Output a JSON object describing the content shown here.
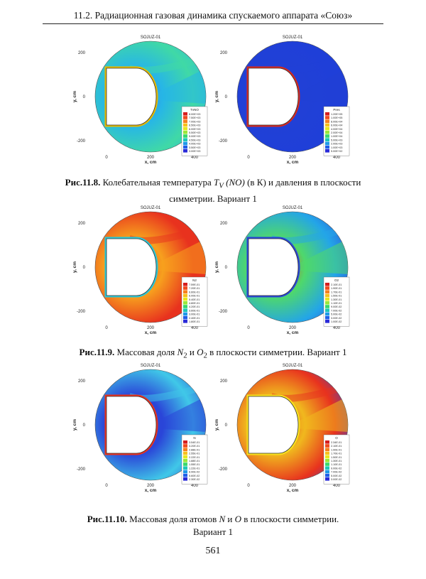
{
  "header": {
    "running_title": "11.2. Радиационная газовая динамика спускаемого аппарата «Союз»"
  },
  "page_number": "561",
  "panel_common": {
    "plot_title": "SOJUZ-01",
    "xlabel": "x, cm",
    "ylabel": "y, cm",
    "xticks": [
      "0",
      "200",
      "400"
    ],
    "yticks": [
      "200",
      "0",
      "-200"
    ]
  },
  "figures": [
    {
      "id": "fig-11-8",
      "caption_label": "Рис.11.8.",
      "caption_line1_pre": " Колебательная температура ",
      "math_symbol": "T",
      "math_sub": "V",
      "math_arg": " (NO)",
      "caption_line1_post": "  (в К) и давления в плоскости",
      "caption_line2": "симметрии. Вариант 1",
      "panels": [
        {
          "legend_title": "TvNO",
          "legend_values": [
            "8.00E+03",
            "7.50E+03",
            "7.00E+03",
            "6.50E+03",
            "6.00E+03",
            "5.50E+03",
            "5.00E+03",
            "4.50E+03",
            "4.00E+03",
            "3.50E+03",
            "3.00E+03"
          ],
          "field_colors": [
            "#3a6ee8",
            "#27b6e6",
            "#40d9a6",
            "#27b6e6"
          ],
          "body_fringe": "#e6b800"
        },
        {
          "legend_title": "Pres",
          "legend_values": [
            "1.20E+05",
            "1.00E+05",
            "8.00E+04",
            "6.00E+04",
            "4.00E+04",
            "2.00E+04",
            "1.00E+04",
            "5.00E+03",
            "2.00E+03",
            "1.00E+03",
            "5.00E+02"
          ],
          "field_colors": [
            "#1f3fd8",
            "#2140d6",
            "#1f3fd8",
            "#1f3fd8"
          ],
          "body_fringe": "#d62a1e"
        }
      ]
    },
    {
      "id": "fig-11-9",
      "caption_label": "Рис.11.9.",
      "caption_pre": " Массовая доля ",
      "sym1": "N",
      "sym1_sub": "2",
      "caption_mid": "  и ",
      "sym2": "O",
      "sym2_sub": "2",
      "caption_post": " в плоскости симметрии. Вариант 1",
      "panels": [
        {
          "legend_title": "N2",
          "legend_values": [
            "7.59E-01",
            "7.20E-01",
            "6.60E-01",
            "6.00E-01",
            "5.40E-01",
            "4.80E-01",
            "4.20E-01",
            "3.60E-01",
            "3.00E-01",
            "2.40E-01",
            "1.80E-01"
          ],
          "field_colors": [
            "#e8321e",
            "#f7a01e",
            "#e8321e",
            "#e8321e"
          ],
          "body_fringe": "#27c7d8"
        },
        {
          "legend_title": "O2",
          "legend_values": [
            "2.10E-01",
            "1.90E-01",
            "1.70E-01",
            "1.50E-01",
            "1.30E-01",
            "1.10E-01",
            "9.00E-02",
            "7.00E-02",
            "5.00E-02",
            "3.00E-02",
            "1.00E-02"
          ],
          "field_colors": [
            "#e8321e",
            "#4fd86b",
            "#23a5e8",
            "#2a45d8"
          ],
          "body_fringe": "#2a45d8"
        }
      ]
    },
    {
      "id": "fig-11-10",
      "caption_label": "Рис.11.10.",
      "caption_pre": " Массовая доля атомов ",
      "sym1": "N",
      "caption_mid": "  и ",
      "sym2": "O",
      "caption_post": " в плоскости симметрии.",
      "caption_line2": "Вариант 1",
      "panels": [
        {
          "legend_title": "N",
          "legend_values": [
            "3.54E-01",
            "3.20E-01",
            "2.88E-01",
            "2.55E-01",
            "2.22E-01",
            "1.88E-01",
            "1.55E-01",
            "1.22E-01",
            "8.90E-02",
            "5.60E-02",
            "2.30E-02"
          ],
          "field_colors": [
            "#2a45d8",
            "#2a45d8",
            "#40c8e8",
            "#2a45d8"
          ],
          "body_fringe": "#e8321e"
        },
        {
          "legend_title": "O",
          "legend_values": [
            "2.34E-01",
            "2.10E-01",
            "1.90E-01",
            "1.70E-01",
            "1.50E-01",
            "1.30E-01",
            "1.10E-01",
            "9.00E-02",
            "7.00E-02",
            "5.00E-02",
            "3.00E-02"
          ],
          "field_colors": [
            "#e8321e",
            "#f0b81e",
            "#e8321e",
            "#2a45d8"
          ],
          "body_fringe": "#f7e01e"
        }
      ]
    }
  ]
}
